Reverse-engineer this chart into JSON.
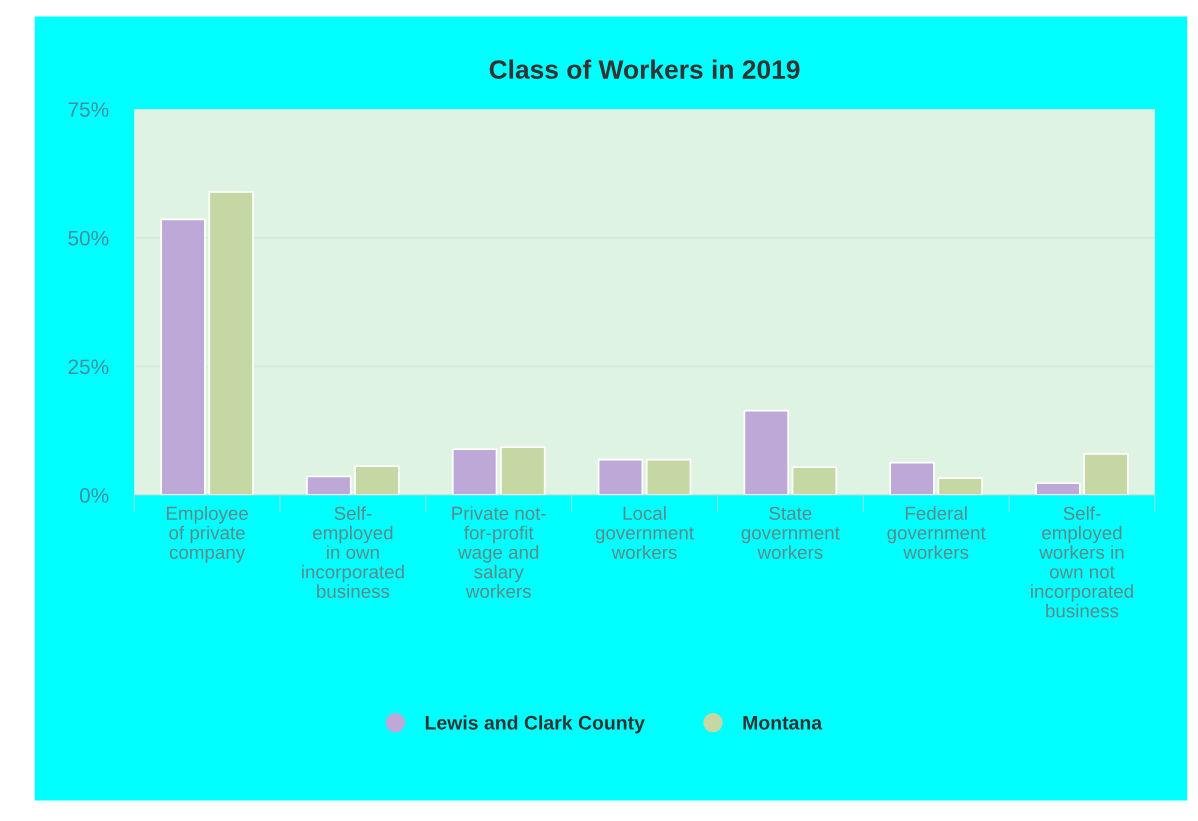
{
  "chart_data": {
    "type": "bar",
    "title": "Class of Workers in 2019",
    "categories": [
      "Employee\nof private\ncompany",
      "Self-\nemployed\nin own\nincorporated\nbusiness",
      "Private not-\nfor-profit\nwage and\nsalary\nworkers",
      "Local\ngovernment\nworkers",
      "State\ngovernment\nworkers",
      "Federal\ngovernment\nworkers",
      "Self-\nemployed\nworkers in\nown not\nincorporated\nbusiness"
    ],
    "series": [
      {
        "name": "Lewis and Clark County",
        "color": "#bea8d8",
        "values": [
          53.6,
          3.6,
          8.9,
          6.9,
          16.4,
          6.3,
          2.3
        ]
      },
      {
        "name": "Montana",
        "color": "#c5d8a4",
        "values": [
          58.9,
          5.6,
          9.3,
          6.9,
          5.4,
          3.3,
          8.0
        ]
      }
    ],
    "ylim": [
      0,
      75
    ],
    "yticks": [
      {
        "value": 0,
        "label": "0%"
      },
      {
        "value": 25,
        "label": "25%"
      },
      {
        "value": 50,
        "label": "50%"
      },
      {
        "value": 75,
        "label": "75%"
      }
    ],
    "grid": "y",
    "legend": "bottom"
  }
}
